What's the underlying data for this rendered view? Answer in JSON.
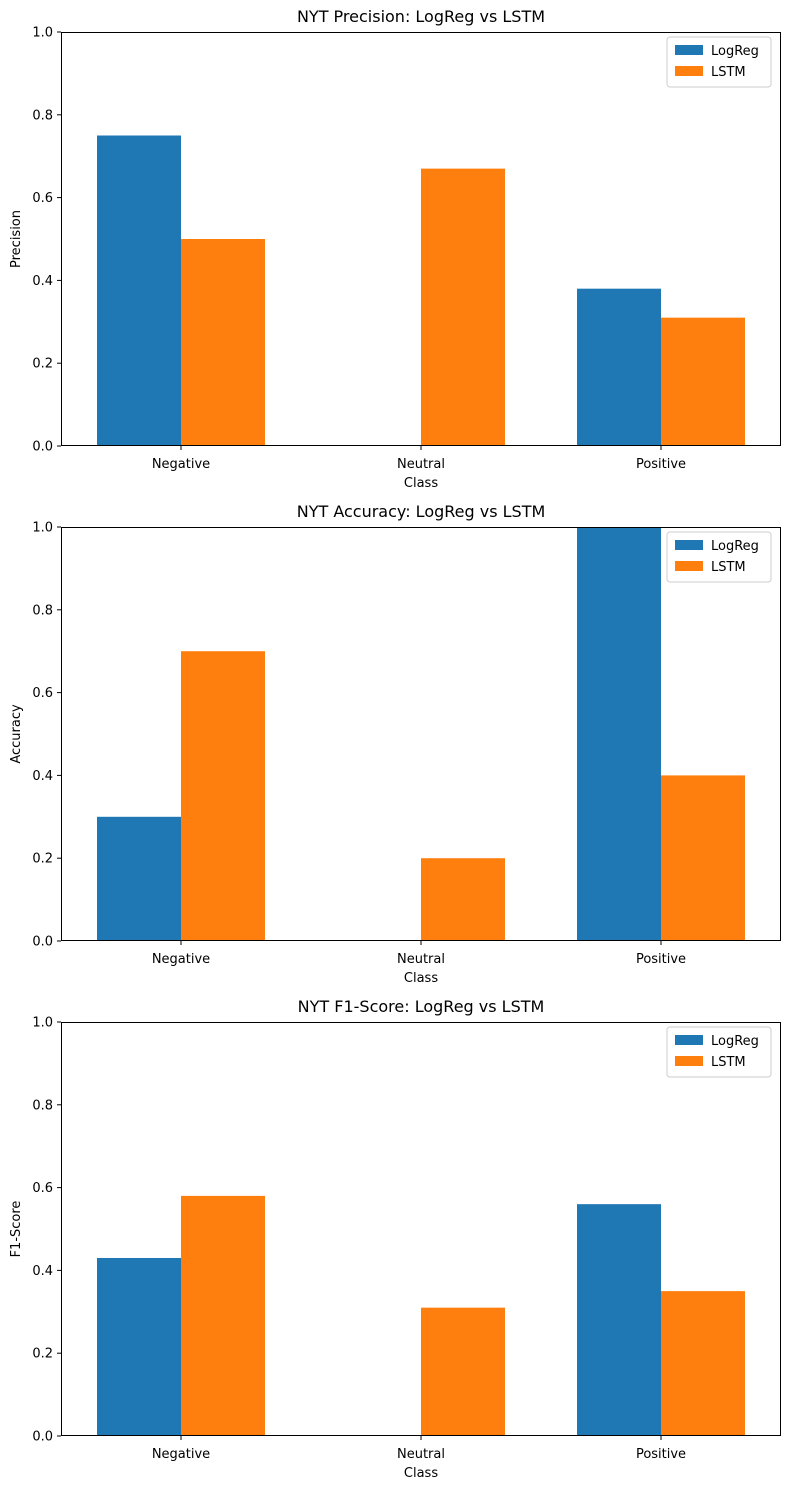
{
  "chart_data": [
    {
      "type": "bar",
      "title": "NYT Precision: LogReg vs LSTM",
      "xlabel": "Class",
      "ylabel": "Precision",
      "categories": [
        "Negative",
        "Neutral",
        "Positive"
      ],
      "ylim": [
        0,
        1
      ],
      "yticks": [
        "0.0",
        "0.2",
        "0.4",
        "0.6",
        "0.8",
        "1.0"
      ],
      "legend_position": "top-right",
      "grid": false,
      "series": [
        {
          "name": "LogReg",
          "color": "#1f77b4",
          "values": [
            0.75,
            0.0,
            0.38
          ]
        },
        {
          "name": "LSTM",
          "color": "#ff7f0e",
          "values": [
            0.5,
            0.67,
            0.31
          ]
        }
      ]
    },
    {
      "type": "bar",
      "title": "NYT Accuracy: LogReg vs LSTM",
      "xlabel": "Class",
      "ylabel": "Accuracy",
      "categories": [
        "Negative",
        "Neutral",
        "Positive"
      ],
      "ylim": [
        0,
        1
      ],
      "yticks": [
        "0.0",
        "0.2",
        "0.4",
        "0.6",
        "0.8",
        "1.0"
      ],
      "legend_position": "top-right",
      "grid": false,
      "series": [
        {
          "name": "LogReg",
          "color": "#1f77b4",
          "values": [
            0.3,
            0.0,
            1.0
          ]
        },
        {
          "name": "LSTM",
          "color": "#ff7f0e",
          "values": [
            0.7,
            0.2,
            0.4
          ]
        }
      ]
    },
    {
      "type": "bar",
      "title": "NYT F1-Score: LogReg vs LSTM",
      "xlabel": "Class",
      "ylabel": "F1-Score",
      "categories": [
        "Negative",
        "Neutral",
        "Positive"
      ],
      "ylim": [
        0,
        1
      ],
      "yticks": [
        "0.0",
        "0.2",
        "0.4",
        "0.6",
        "0.8",
        "1.0"
      ],
      "legend_position": "top-right",
      "grid": false,
      "series": [
        {
          "name": "LogReg",
          "color": "#1f77b4",
          "values": [
            0.43,
            0.0,
            0.56
          ]
        },
        {
          "name": "LSTM",
          "color": "#ff7f0e",
          "values": [
            0.58,
            0.31,
            0.35
          ]
        }
      ]
    }
  ]
}
